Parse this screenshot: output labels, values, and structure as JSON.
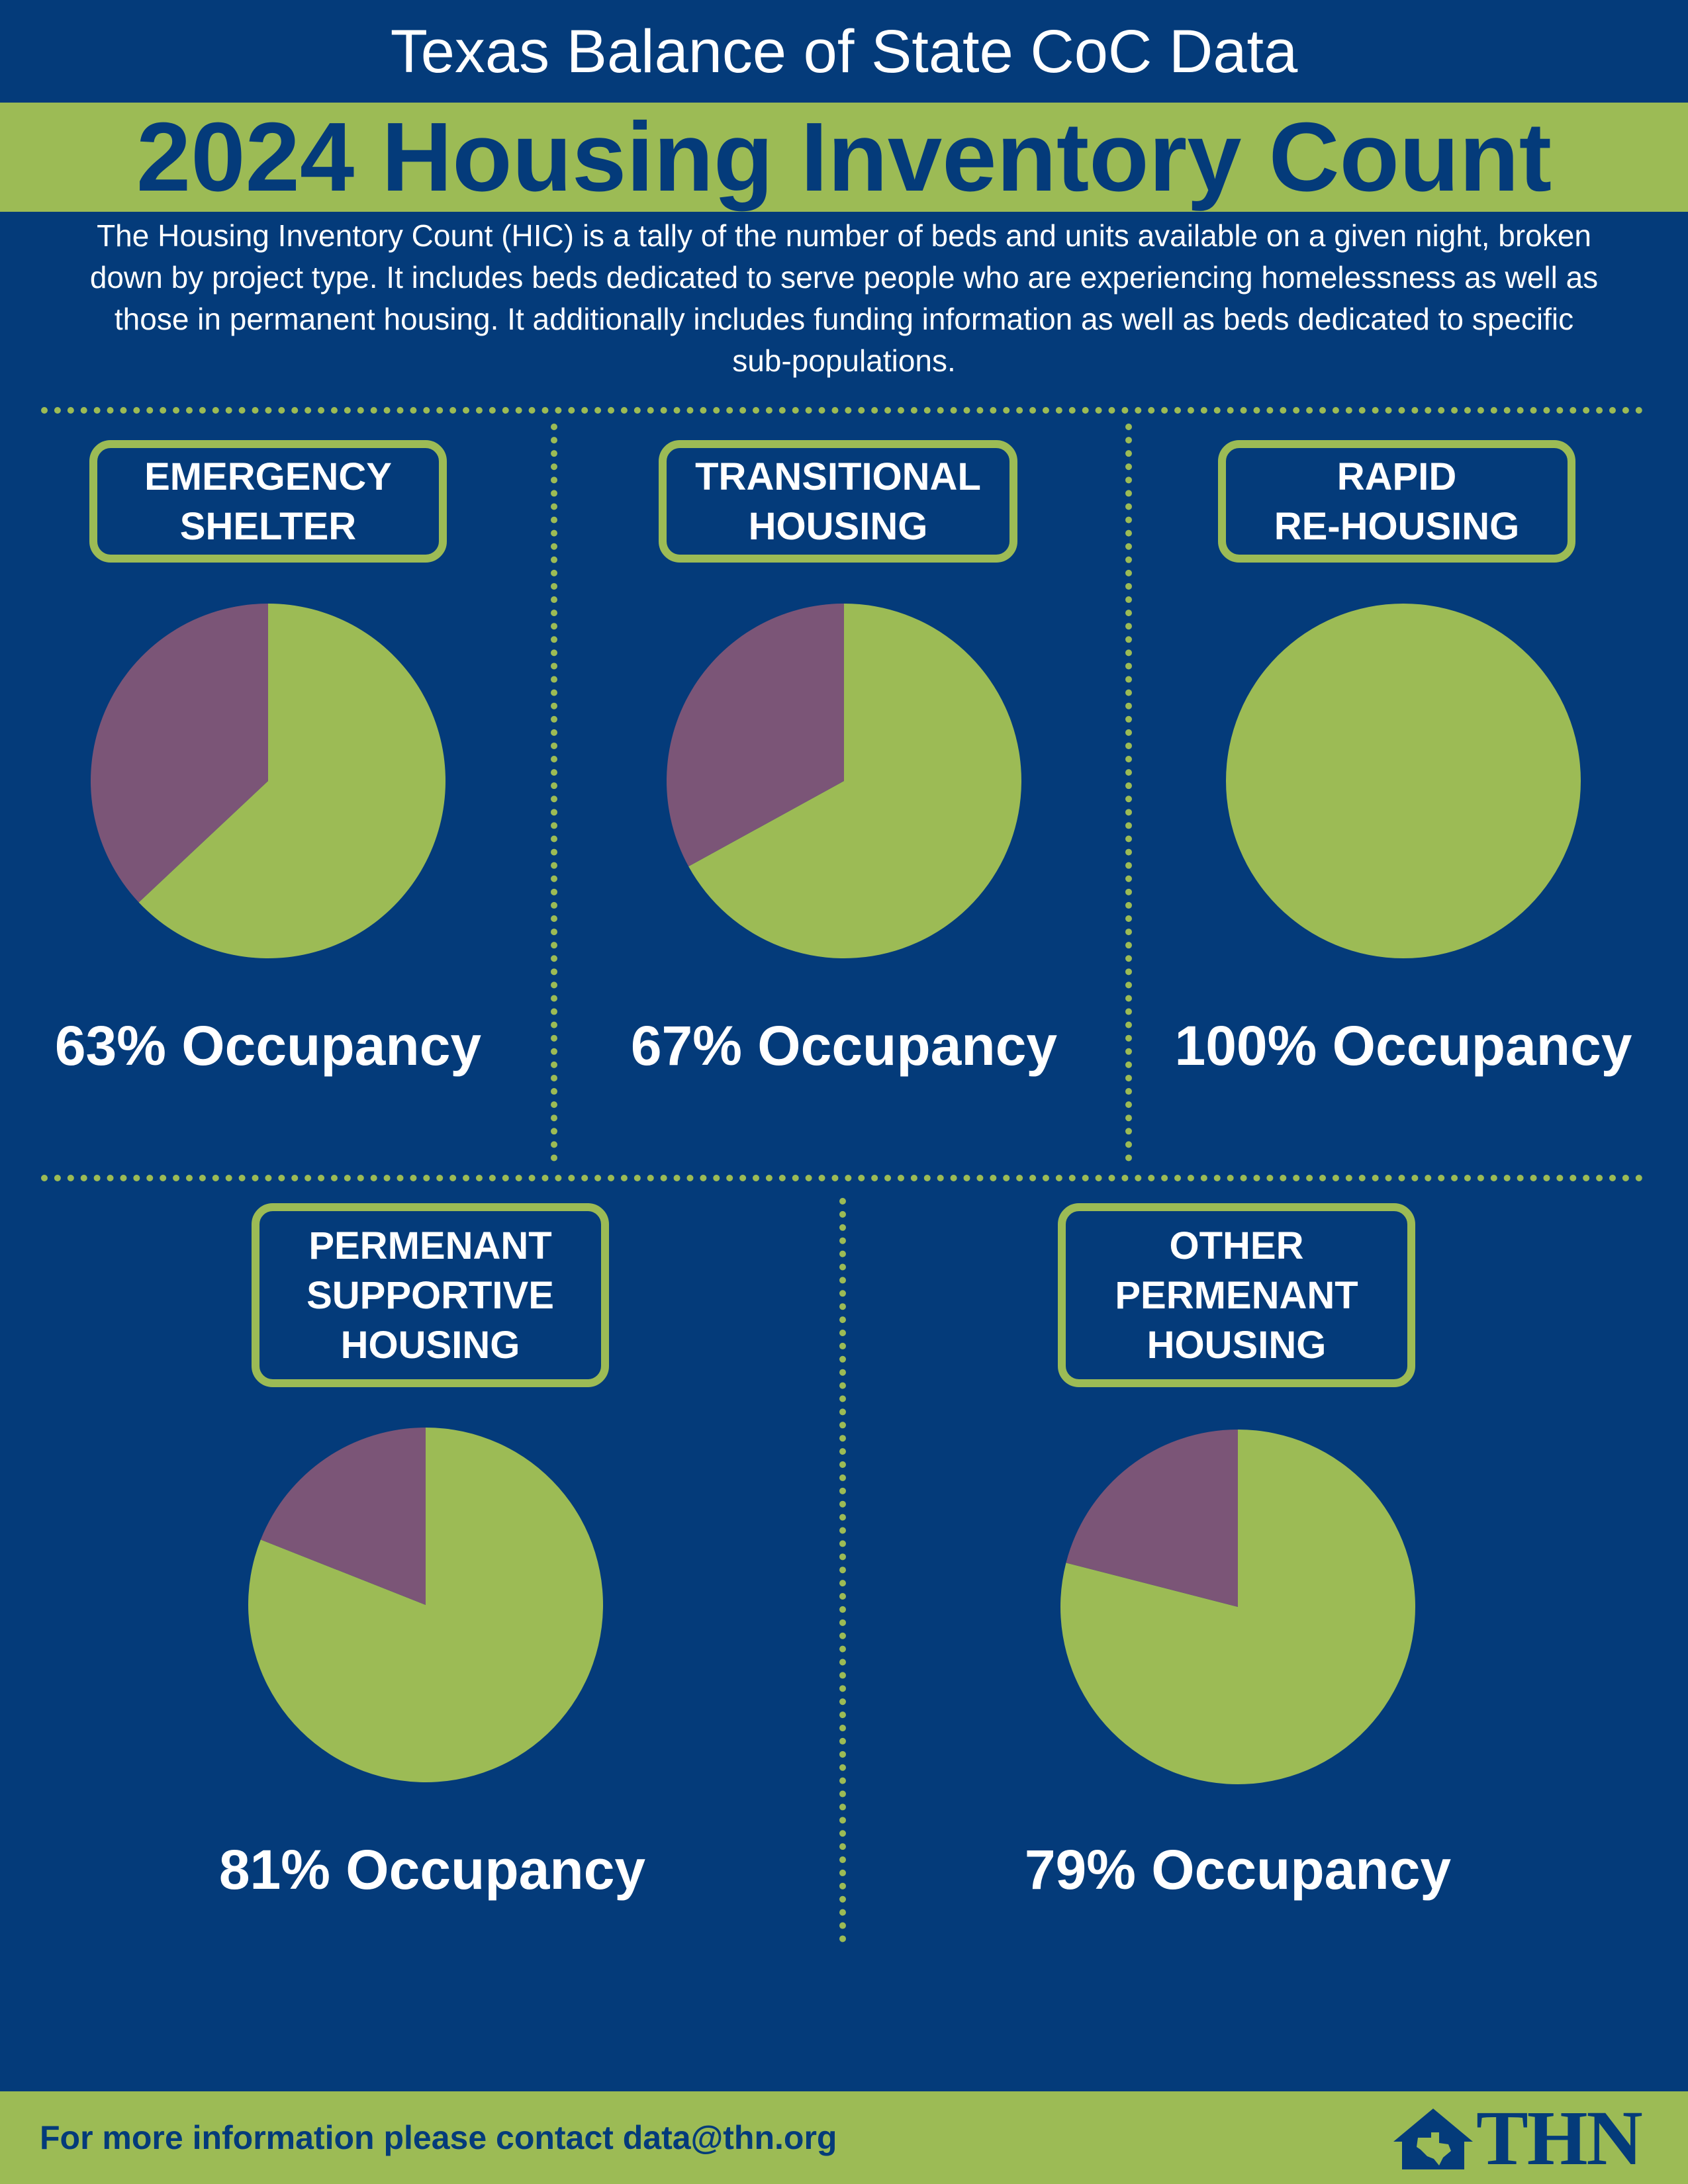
{
  "header": {
    "super_title": "Texas Balance of State CoC Data",
    "title": "2024 Housing Inventory Count",
    "intro": "The Housing Inventory Count (HIC) is a tally of the number of beds and units available on a given night, broken down by project type. It includes beds dedicated to serve people who are experiencing homelessness as well as those in permanent housing. It additionally includes funding information as well as beds dedicated to specific sub-populations."
  },
  "colors": {
    "background": "#043B7A",
    "accent": "#9CBB55",
    "occupied": "#9CBB55",
    "unoccupied": "#7B5577"
  },
  "chart_data": [
    {
      "type": "pie",
      "label": "EMERGENCY\nSHELTER",
      "occupancy_text": "63% Occupancy",
      "slices": [
        {
          "name": "occupied",
          "value": 63,
          "color": "#9CBB55"
        },
        {
          "name": "unoccupied",
          "value": 37,
          "color": "#7B5577"
        }
      ]
    },
    {
      "type": "pie",
      "label": "TRANSITIONAL\nHOUSING",
      "occupancy_text": "67% Occupancy",
      "slices": [
        {
          "name": "occupied",
          "value": 67,
          "color": "#9CBB55"
        },
        {
          "name": "unoccupied",
          "value": 33,
          "color": "#7B5577"
        }
      ]
    },
    {
      "type": "pie",
      "label": "RAPID\nRE-HOUSING",
      "occupancy_text": "100% Occupancy",
      "slices": [
        {
          "name": "occupied",
          "value": 100,
          "color": "#9CBB55"
        },
        {
          "name": "unoccupied",
          "value": 0,
          "color": "#7B5577"
        }
      ]
    },
    {
      "type": "pie",
      "label": "PERMENANT\nSUPPORTIVE\nHOUSING",
      "occupancy_text": "81% Occupancy",
      "slices": [
        {
          "name": "occupied",
          "value": 81,
          "color": "#9CBB55"
        },
        {
          "name": "unoccupied",
          "value": 19,
          "color": "#7B5577"
        }
      ]
    },
    {
      "type": "pie",
      "label": "OTHER\nPERMENANT\nHOUSING",
      "occupancy_text": "79% Occupancy",
      "slices": [
        {
          "name": "occupied",
          "value": 79,
          "color": "#9CBB55"
        },
        {
          "name": "unoccupied",
          "value": 21,
          "color": "#7B5577"
        }
      ]
    }
  ],
  "footer": {
    "contact": "For more information please contact data@thn.org",
    "logo_text": "THN",
    "logo_icon": "texas-house-icon"
  }
}
